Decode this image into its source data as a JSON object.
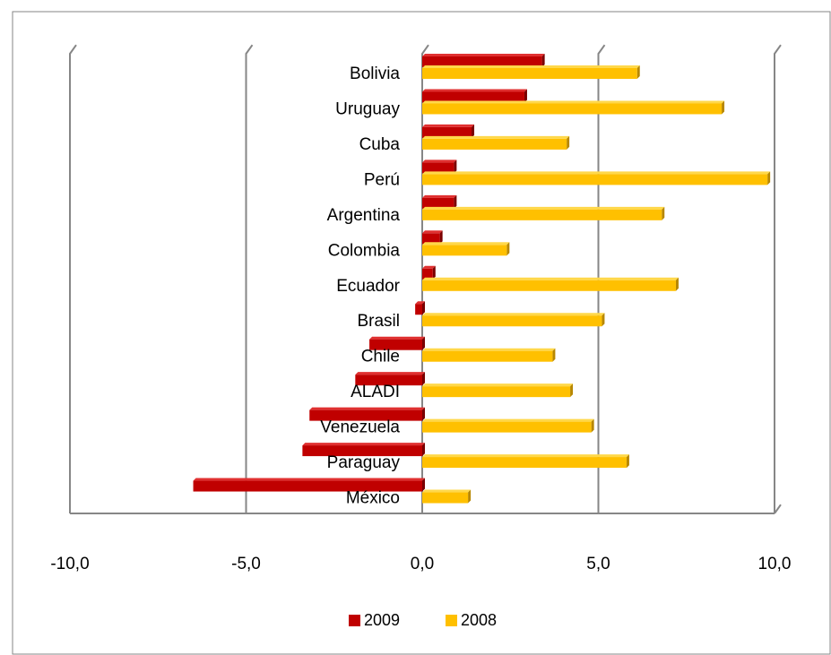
{
  "colors": {
    "series_2009": "#C00000",
    "series_2009_dark": "#7A0000",
    "series_2009_light": "#E03030",
    "series_2008": "#FFC000",
    "series_2008_dark": "#B78700",
    "series_2008_light": "#FFD84A",
    "gridline": "#868686",
    "frame": "#868686"
  },
  "chart_data": {
    "type": "bar",
    "orientation": "horizontal",
    "categories": [
      "Bolivia",
      "Uruguay",
      "Cuba",
      "Perú",
      "Argentina",
      "Colombia",
      "Ecuador",
      "Brasil",
      "Chile",
      "ALADI",
      "Venezuela",
      "Paraguay",
      "México"
    ],
    "series": [
      {
        "name": "2009",
        "values": [
          3.4,
          2.9,
          1.4,
          0.9,
          0.9,
          0.5,
          0.3,
          -0.2,
          -1.5,
          -1.9,
          -3.2,
          -3.4,
          -6.5
        ]
      },
      {
        "name": "2008",
        "values": [
          6.1,
          8.5,
          4.1,
          9.8,
          6.8,
          2.4,
          7.2,
          5.1,
          3.7,
          4.2,
          4.8,
          5.8,
          1.3
        ]
      }
    ],
    "xlim": [
      -10,
      10
    ],
    "xticks": [
      -10,
      -5,
      0,
      5,
      10
    ],
    "xtick_labels": [
      "-10,0",
      "-5,0",
      "0,0",
      "5,0",
      "10,0"
    ],
    "grid": true,
    "legend": "bottom",
    "title": "",
    "xlabel": "",
    "ylabel": ""
  }
}
